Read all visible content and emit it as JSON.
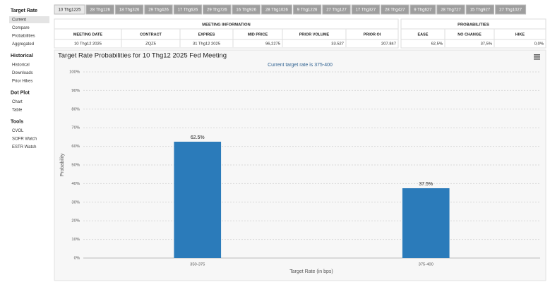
{
  "sidebar": [
    {
      "heading": "Target Rate",
      "items": [
        "Current",
        "Compare",
        "Probabilities",
        "Aggregated"
      ]
    },
    {
      "heading": "Historical",
      "items": [
        "Historical",
        "Downloads",
        "Prior Hikes"
      ]
    },
    {
      "heading": "Dot Plot",
      "items": [
        "Chart",
        "Table"
      ]
    },
    {
      "heading": "Tools",
      "items": [
        "CVOL",
        "SOFR Watch",
        "ESTR Watch"
      ]
    }
  ],
  "tabs": [
    "10 Thg1225",
    "28 Thg126",
    "18 Thg326",
    "29 Thg426",
    "17 Thg626",
    "29 Thg726",
    "16 Thg926",
    "28 Thg1026",
    "9 Thg1226",
    "27 Thg127",
    "17 Thg327",
    "28 Thg427",
    "9 Thg627",
    "28 Thg727",
    "15 Thg927",
    "27 Thg1027"
  ],
  "meeting_table": {
    "title": "MEETING INFORMATION",
    "headers": [
      "MEETING DATE",
      "CONTRACT",
      "EXPIRES",
      "MID PRICE",
      "PRIOR VOLUME",
      "PRIOR OI"
    ],
    "rows": [
      [
        "10 Thg12 2025",
        "ZQZ5",
        "31 Thg12 2025",
        "96,2275",
        "33.527",
        "207.847"
      ]
    ]
  },
  "probability_table": {
    "title": "PROBABILITIES",
    "headers": [
      "EASE",
      "NO CHANGE",
      "HIKE"
    ],
    "rows": [
      [
        "62,5%",
        "37,5%",
        "0,0%"
      ]
    ]
  },
  "chart_data": {
    "type": "bar",
    "title": "Target Rate Probabilities for 10 Thg12 2025 Fed Meeting",
    "subtitle": "Current target rate is 375-400",
    "categories": [
      "350-375",
      "375-400"
    ],
    "values": [
      62.5,
      37.5
    ],
    "value_labels": [
      "62.5%",
      "37.5%"
    ],
    "color": "#2b7bba",
    "x_label": "Target Rate (in bps)",
    "y_label": "Probability",
    "ylim": [
      0,
      100
    ],
    "yticks": [
      {
        "value": 0,
        "label": "0%"
      },
      {
        "value": 10,
        "label": "10%"
      },
      {
        "value": 20,
        "label": "20%"
      },
      {
        "value": 30,
        "label": "30%"
      },
      {
        "value": 40,
        "label": "40%"
      },
      {
        "value": 50,
        "label": "50%"
      },
      {
        "value": 60,
        "label": "60%"
      },
      {
        "value": 70,
        "label": "70%"
      },
      {
        "value": 80,
        "label": "80%"
      },
      {
        "value": 90,
        "label": "90%"
      },
      {
        "value": 100,
        "label": "100%"
      }
    ],
    "grid": true
  }
}
